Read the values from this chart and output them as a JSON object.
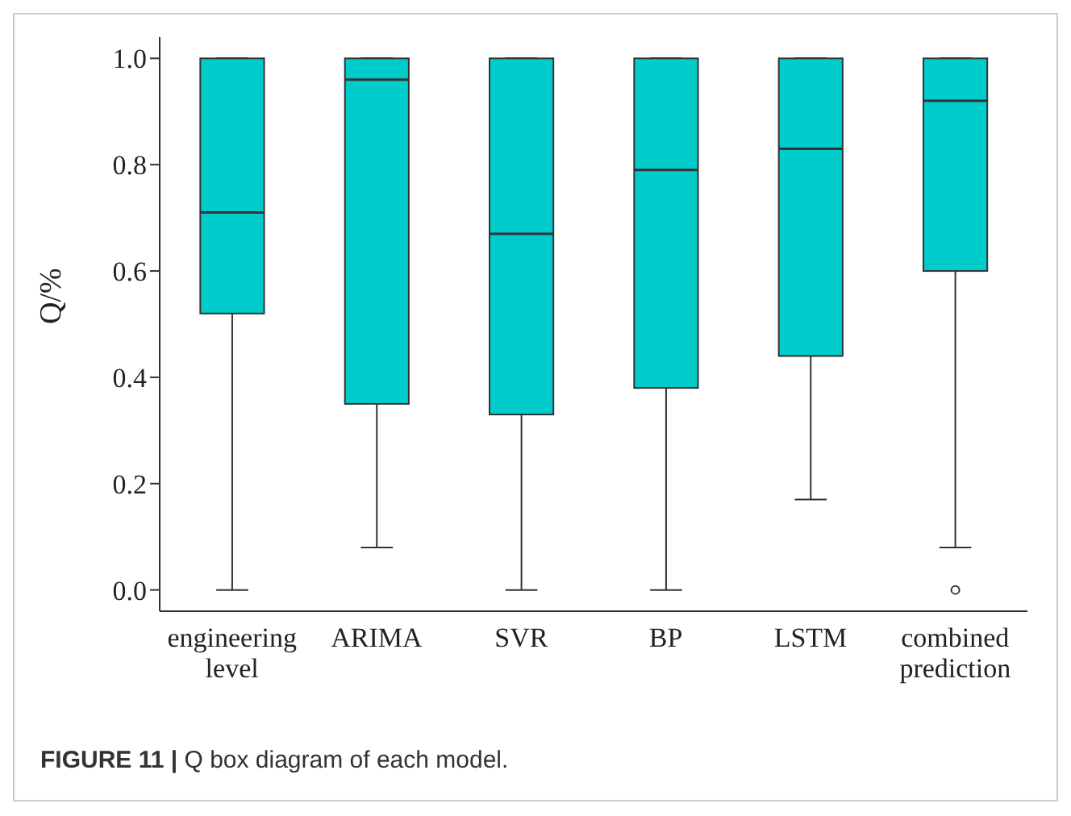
{
  "chart_data": {
    "type": "box",
    "ylabel": "Q/%",
    "categories": [
      "engineering level",
      "ARIMA",
      "SVR",
      "BP",
      "LSTM",
      "combined prediction"
    ],
    "boxes": [
      {
        "low": 0,
        "q1": 0.52,
        "median": 0.71,
        "q3": 1.0,
        "high": 1.0
      },
      {
        "low": 0.08,
        "q1": 0.35,
        "median": 0.96,
        "q3": 1.0,
        "high": 1.0
      },
      {
        "low": 0,
        "q1": 0.33,
        "median": 0.67,
        "q3": 1.0,
        "high": 1.0
      },
      {
        "low": 0,
        "q1": 0.38,
        "median": 0.79,
        "q3": 1.0,
        "high": 1.0
      },
      {
        "low": 0.17,
        "q1": 0.44,
        "median": 0.83,
        "q3": 1.0,
        "high": 1.0
      },
      {
        "low": 0.08,
        "q1": 0.6,
        "median": 0.92,
        "q3": 1.0,
        "high": 1.0,
        "outliers": [
          0
        ]
      }
    ],
    "color": "#00cccc",
    "ylim": [
      -0.04,
      1.04
    ],
    "yticks": [
      {
        "value": 0,
        "label": "0.0"
      },
      0.2,
      0.4,
      0.6,
      0.8,
      {
        "value": 1,
        "label": "1.0"
      }
    ],
    "grid": false,
    "annotations": [
      "FIGURE 11 | Q box diagram of each model."
    ]
  }
}
